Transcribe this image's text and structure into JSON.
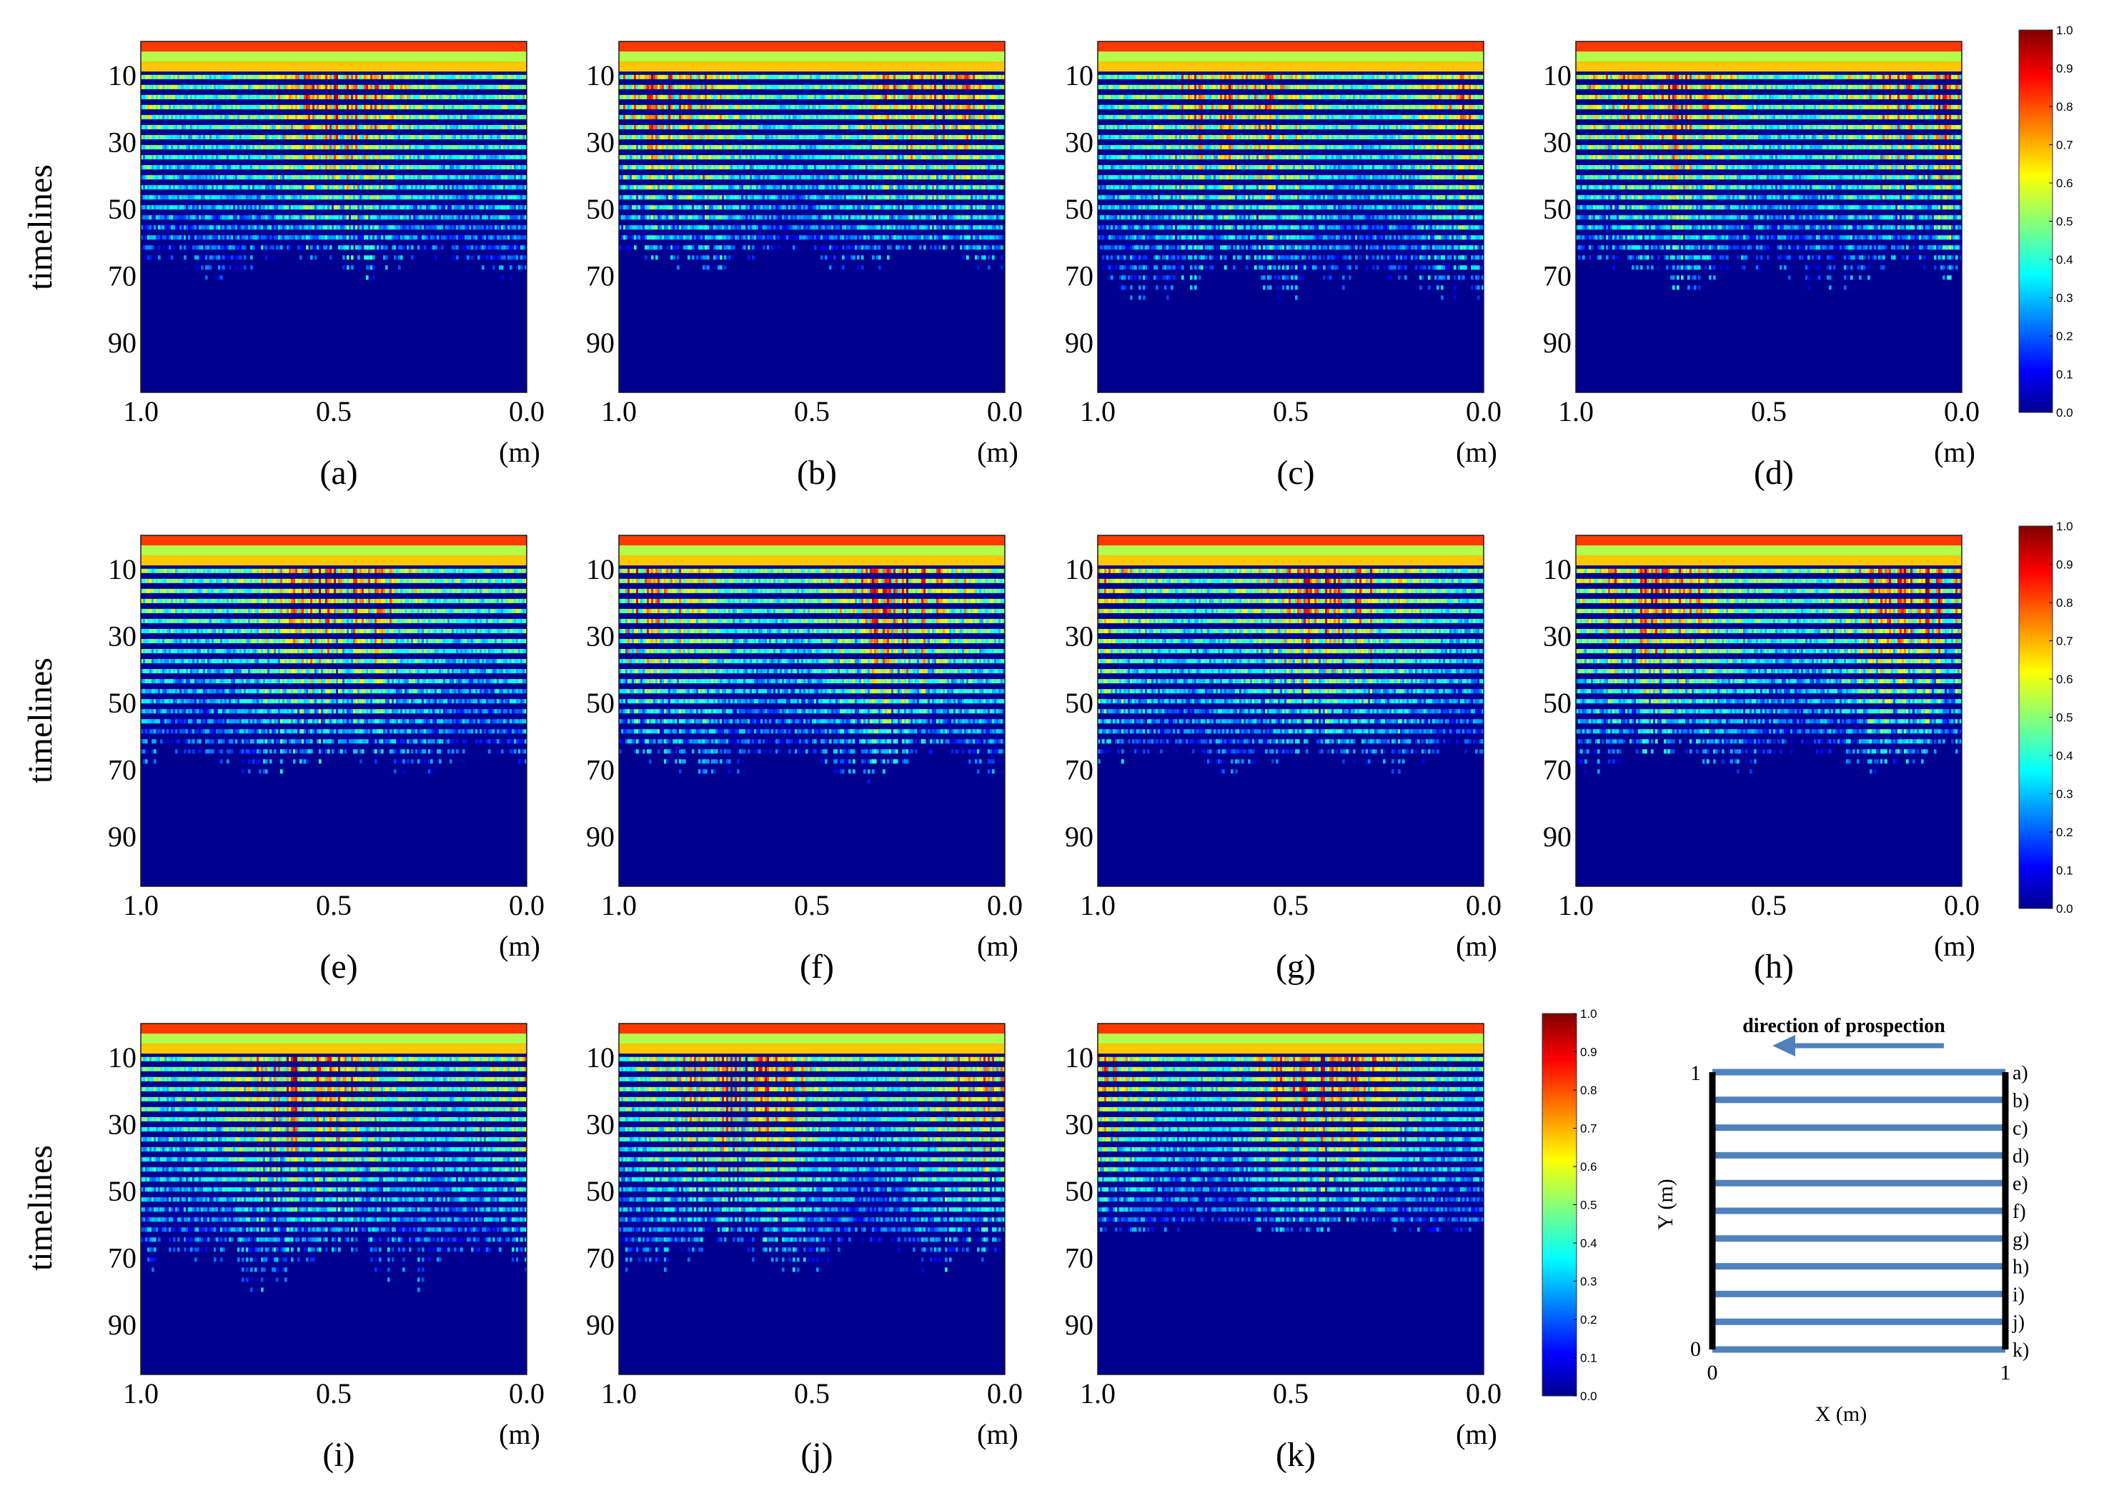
{
  "figure": {
    "row_ylabel": "timelines",
    "y_ticks": [
      "10",
      "30",
      "50",
      "70",
      "90"
    ],
    "x_ticks": [
      "1.0",
      "0.5",
      "0.0"
    ],
    "x_unit": "(m)"
  },
  "chart_data": [
    {
      "type": "heatmap",
      "label": "(a)",
      "xlim": [
        1.0,
        0.0
      ],
      "ylabel": "timelines",
      "xlabel": "(m)",
      "max_depth": 72,
      "seed": 11
    },
    {
      "type": "heatmap",
      "label": "(b)",
      "xlim": [
        1.0,
        0.0
      ],
      "ylabel": "",
      "xlabel": "(m)",
      "max_depth": 70,
      "seed": 23
    },
    {
      "type": "heatmap",
      "label": "(c)",
      "xlim": [
        1.0,
        0.0
      ],
      "ylabel": "",
      "xlabel": "(m)",
      "max_depth": 80,
      "seed": 37
    },
    {
      "type": "heatmap",
      "label": "(d)",
      "xlim": [
        1.0,
        0.0
      ],
      "ylabel": "",
      "xlabel": "(m)",
      "max_depth": 76,
      "seed": 41
    },
    {
      "type": "heatmap",
      "label": "(e)",
      "xlim": [
        1.0,
        0.0
      ],
      "ylabel": "timelines",
      "xlabel": "(m)",
      "max_depth": 74,
      "seed": 53
    },
    {
      "type": "heatmap",
      "label": "(f)",
      "xlim": [
        1.0,
        0.0
      ],
      "ylabel": "",
      "xlabel": "(m)",
      "max_depth": 74,
      "seed": 67
    },
    {
      "type": "heatmap",
      "label": "(g)",
      "xlim": [
        1.0,
        0.0
      ],
      "ylabel": "",
      "xlabel": "(m)",
      "max_depth": 72,
      "seed": 71
    },
    {
      "type": "heatmap",
      "label": "(h)",
      "xlim": [
        1.0,
        0.0
      ],
      "ylabel": "",
      "xlabel": "(m)",
      "max_depth": 72,
      "seed": 83
    },
    {
      "type": "heatmap",
      "label": "(i)",
      "xlim": [
        1.0,
        0.0
      ],
      "ylabel": "timelines",
      "xlabel": "(m)",
      "max_depth": 80,
      "seed": 97
    },
    {
      "type": "heatmap",
      "label": "(j)",
      "xlim": [
        1.0,
        0.0
      ],
      "ylabel": "",
      "xlabel": "(m)",
      "max_depth": 76,
      "seed": 101
    },
    {
      "type": "heatmap",
      "label": "(k)",
      "xlim": [
        1.0,
        0.0
      ],
      "ylabel": "",
      "xlabel": "(m)",
      "max_depth": 64,
      "seed": 113
    }
  ],
  "colorbar": {
    "ticks": [
      "1.0",
      "0.9",
      "0.8",
      "0.7",
      "0.6",
      "0.5",
      "0.4",
      "0.3",
      "0.2",
      "0.1",
      "0.0"
    ],
    "range": [
      0.0,
      1.0
    ],
    "colormap": "jet"
  },
  "diagram": {
    "title": "direction of prospection",
    "arrow_color": "#4f81bd",
    "line_color": "#4f81bd",
    "line_labels": [
      "a)",
      "b)",
      "c)",
      "d)",
      "e)",
      "f)",
      "g)",
      "h)",
      "i)",
      "j)",
      "k)"
    ],
    "x_label": "X (m)",
    "y_label": "Y (m)",
    "x_ticks": [
      "0",
      "1"
    ],
    "y_ticks": [
      "0",
      "1"
    ]
  }
}
